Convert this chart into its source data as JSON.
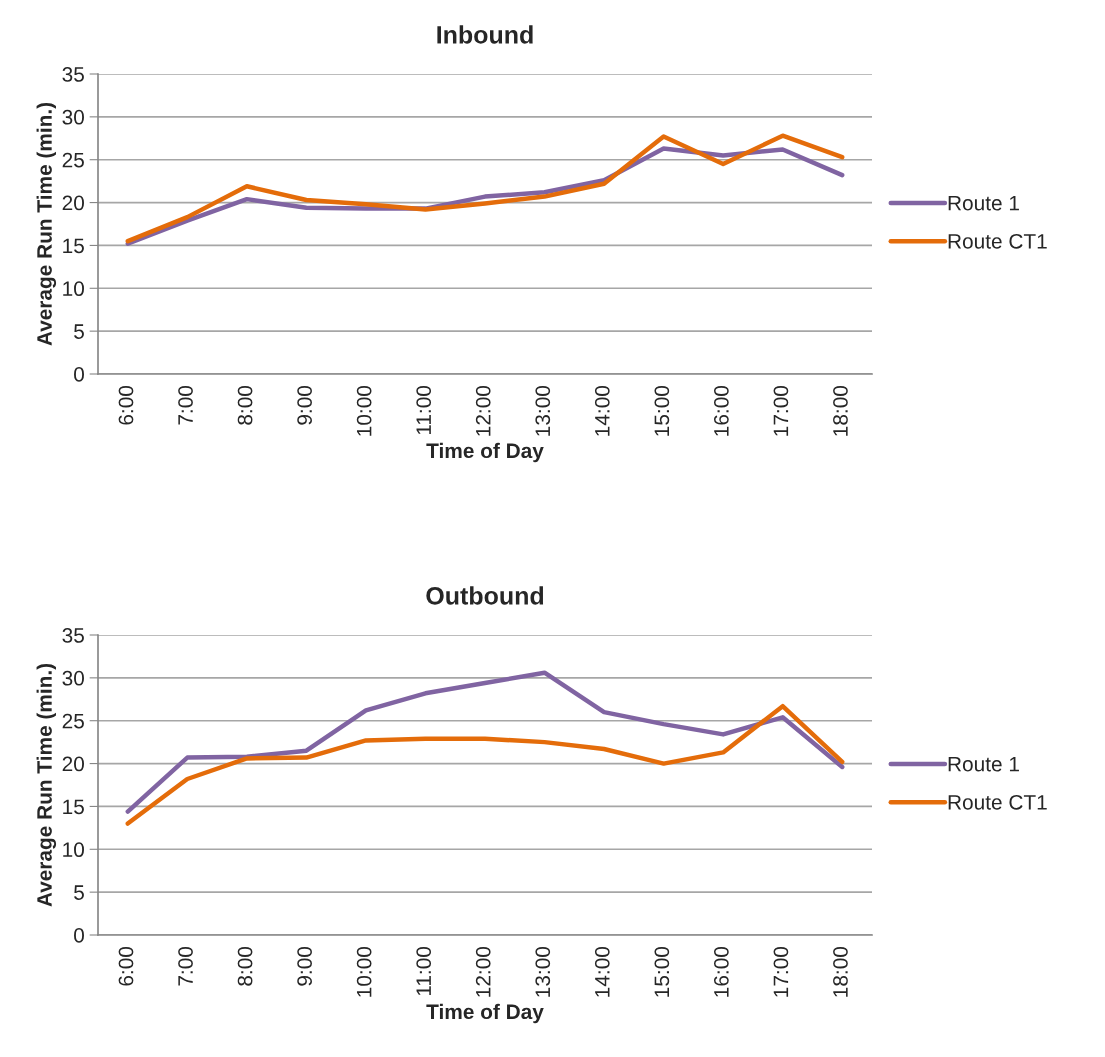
{
  "chart_data": [
    {
      "type": "line",
      "title": "Inbound",
      "xlabel": "Time of Day",
      "ylabel": "Average Run Time (min.)",
      "categories": [
        "6:00",
        "7:00",
        "8:00",
        "9:00",
        "10:00",
        "11:00",
        "12:00",
        "13:00",
        "14:00",
        "15:00",
        "16:00",
        "17:00",
        "18:00"
      ],
      "series": [
        {
          "name": "Route 1",
          "color": "#8064a2",
          "values": [
            15.2,
            17.9,
            20.4,
            19.4,
            19.3,
            19.3,
            20.7,
            21.2,
            22.6,
            26.3,
            25.5,
            26.2,
            23.2
          ]
        },
        {
          "name": "Route CT1",
          "color": "#e46c0a",
          "values": [
            15.5,
            18.3,
            21.9,
            20.3,
            19.8,
            19.2,
            19.9,
            20.7,
            22.2,
            27.7,
            24.5,
            27.8,
            25.3
          ]
        }
      ],
      "ylim": [
        0,
        35
      ],
      "yticks": [
        0,
        5,
        10,
        15,
        20,
        25,
        30,
        35
      ],
      "grid": "y",
      "legend": "right",
      "marker": "none",
      "line_style": "solid"
    },
    {
      "type": "line",
      "title": "Outbound",
      "xlabel": "Time of Day",
      "ylabel": "Average Run Time (min.)",
      "categories": [
        "6:00",
        "7:00",
        "8:00",
        "9:00",
        "10:00",
        "11:00",
        "12:00",
        "13:00",
        "14:00",
        "15:00",
        "16:00",
        "17:00",
        "18:00"
      ],
      "series": [
        {
          "name": "Route 1",
          "color": "#8064a2",
          "values": [
            14.4,
            20.7,
            20.8,
            21.5,
            26.2,
            28.2,
            29.4,
            30.6,
            26.0,
            24.6,
            23.4,
            25.4,
            19.6
          ]
        },
        {
          "name": "Route CT1",
          "color": "#e46c0a",
          "values": [
            13.0,
            18.2,
            20.6,
            20.7,
            22.7,
            22.9,
            22.9,
            22.5,
            21.7,
            20.0,
            21.3,
            26.7,
            20.2
          ]
        }
      ],
      "ylim": [
        0,
        35
      ],
      "yticks": [
        0,
        5,
        10,
        15,
        20,
        25,
        30,
        35
      ],
      "grid": "y",
      "legend": "right",
      "marker": "none",
      "line_style": "solid"
    }
  ]
}
